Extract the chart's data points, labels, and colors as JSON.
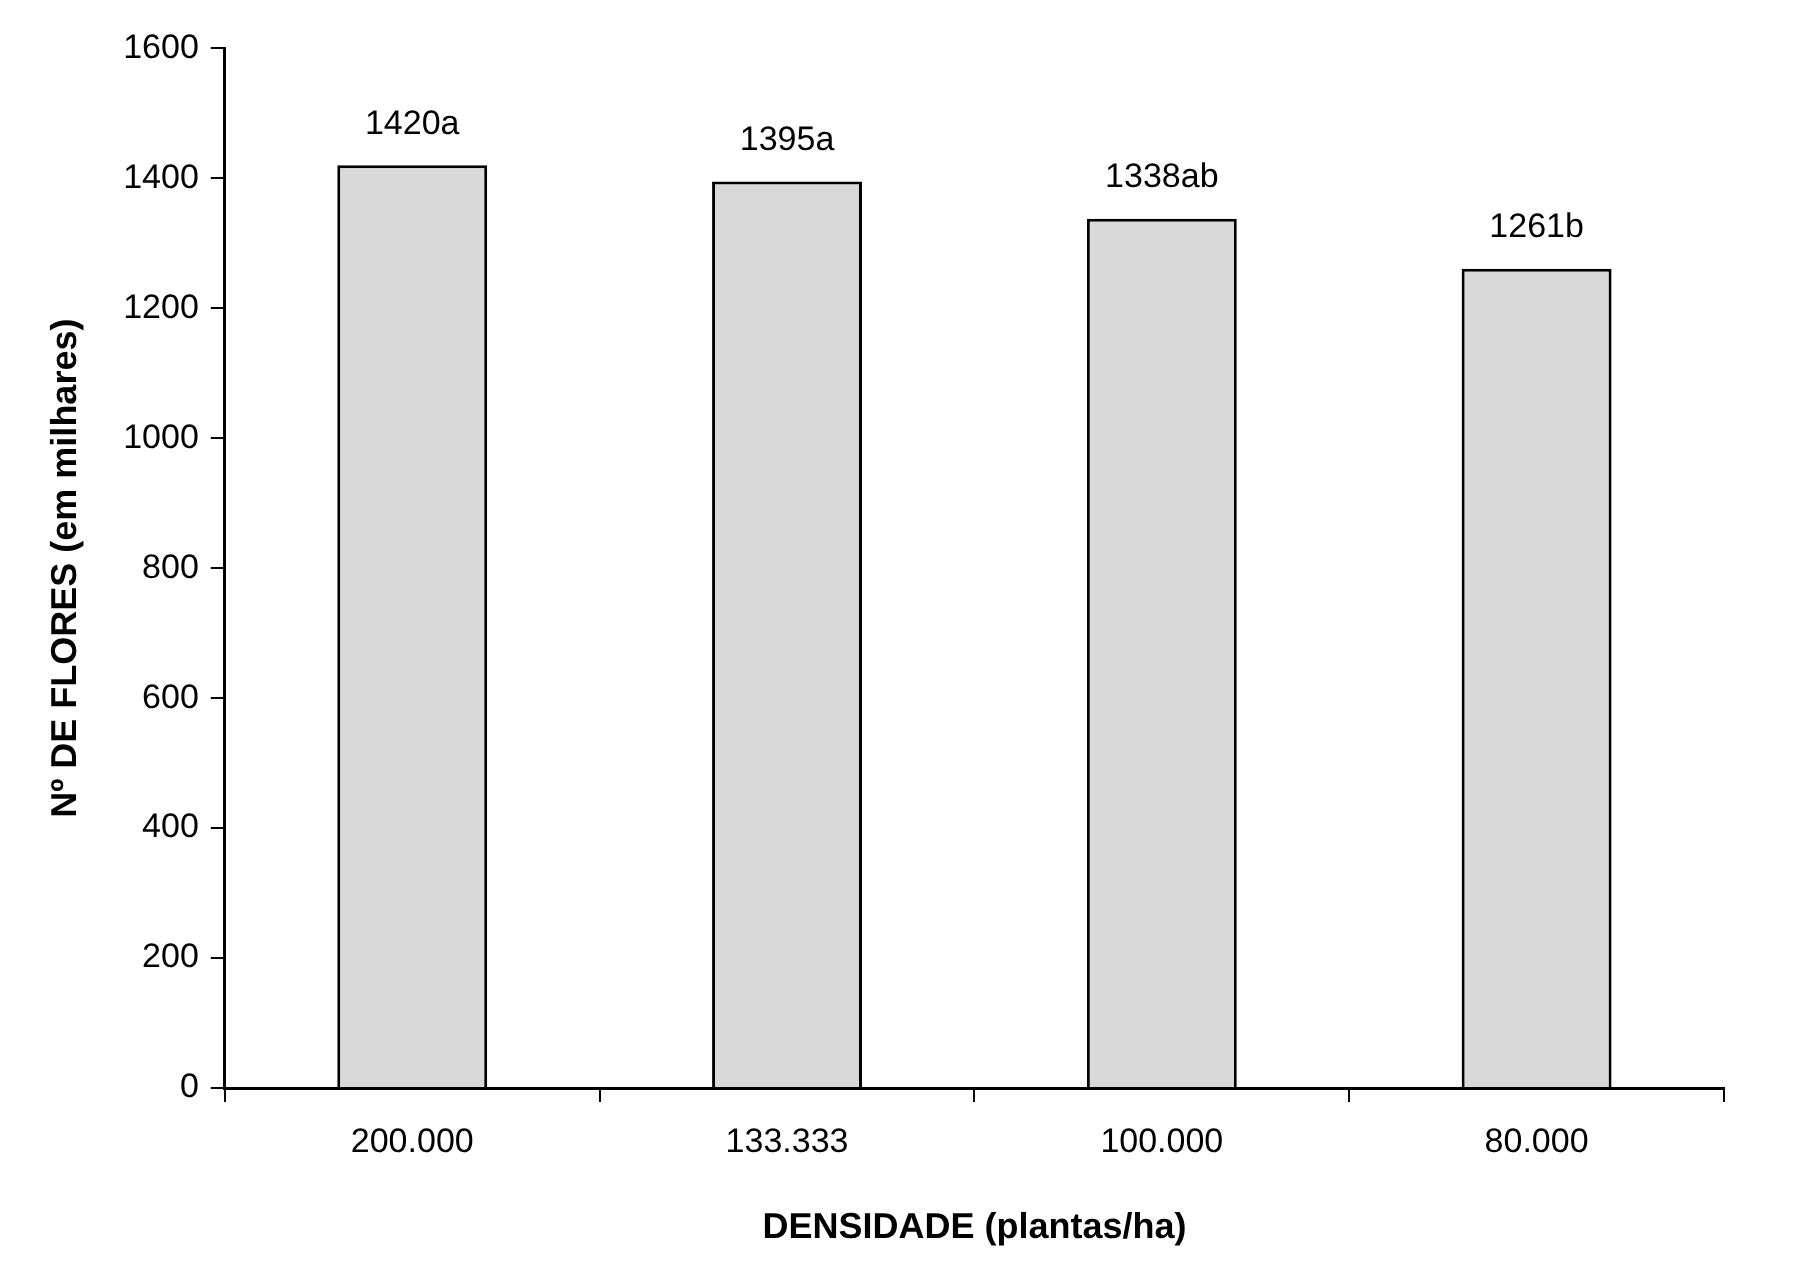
{
  "chart_data": {
    "type": "bar",
    "xlabel": "DENSIDADE (plantas/ha)",
    "ylabel": "Nº DE FLORES (em milhares)",
    "categories": [
      "200.000",
      "133.333",
      "100.000",
      "80.000"
    ],
    "values": [
      1420,
      1395,
      1338,
      1261
    ],
    "value_labels": [
      "1420a",
      "1395a",
      "1338ab",
      "1261b"
    ],
    "color": "#d9d9d9",
    "ylim": [
      0,
      1600
    ],
    "yticks": [
      0,
      200,
      400,
      600,
      800,
      1000,
      1200,
      1400,
      1600
    ],
    "grid": false,
    "legend": false
  }
}
